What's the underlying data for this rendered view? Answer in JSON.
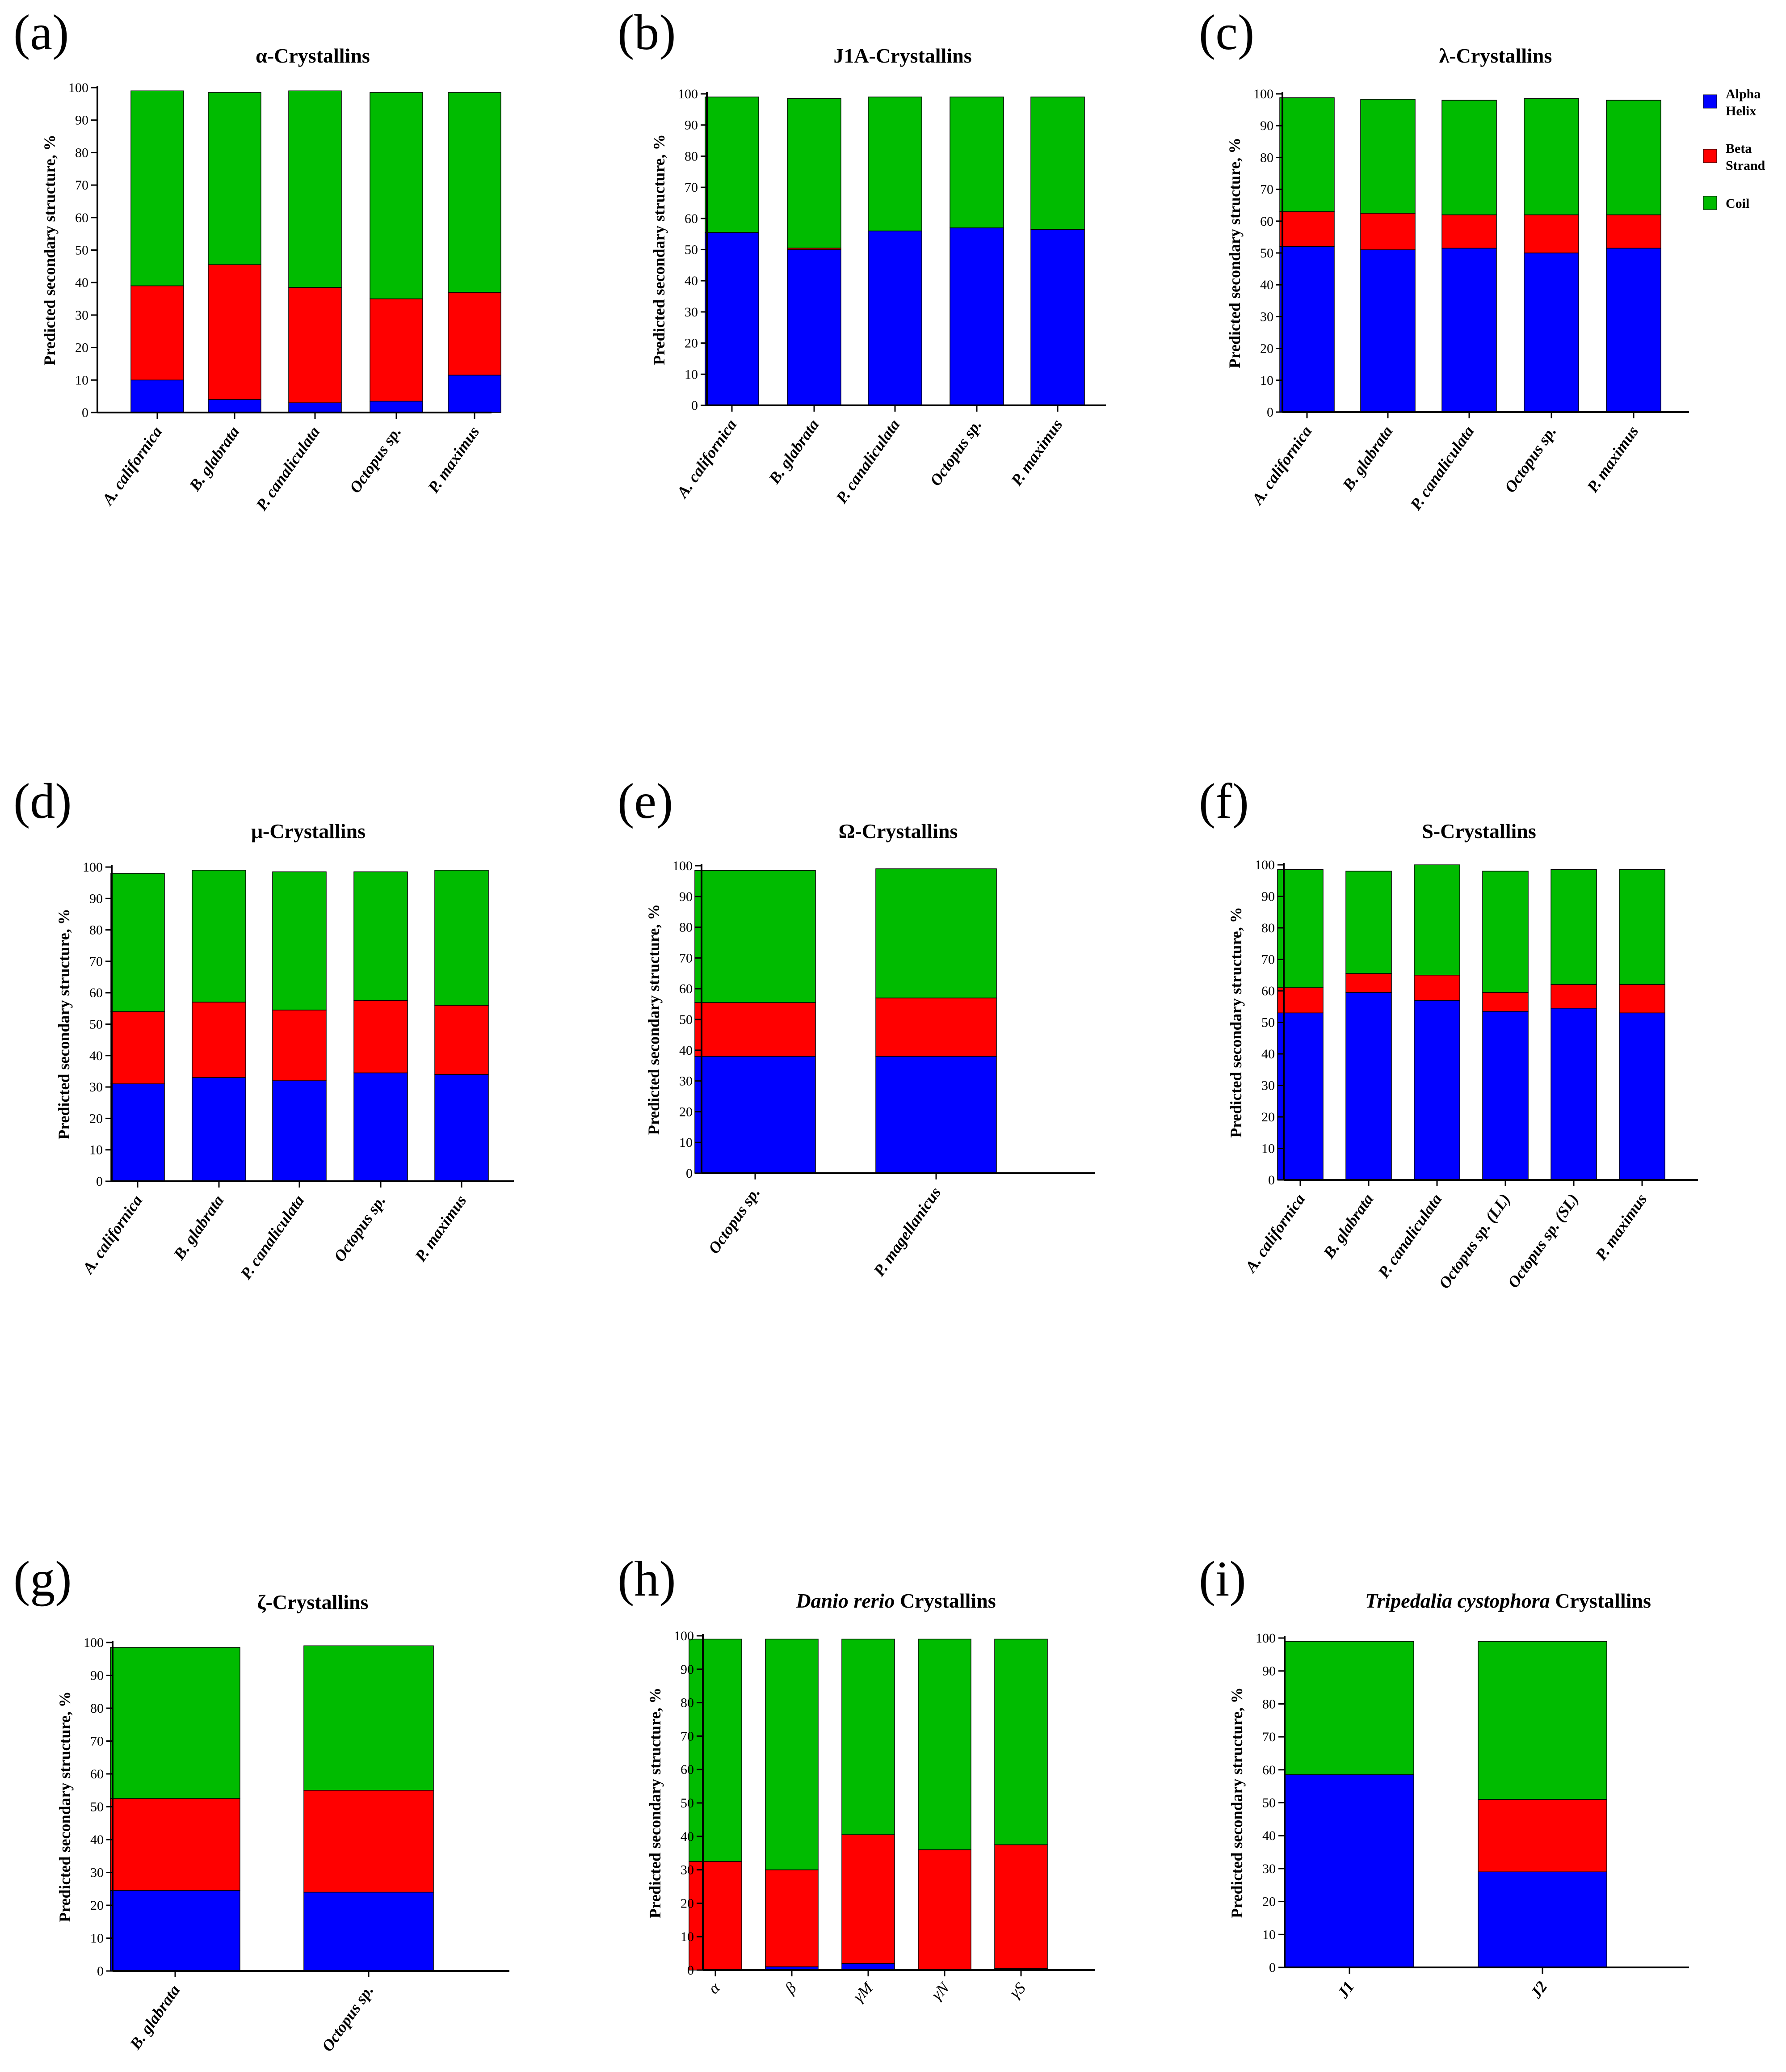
{
  "colors": {
    "alpha_helix": "#0000ff",
    "beta_strand": "#ff0000",
    "coil": "#00bb00"
  },
  "legend": {
    "items": [
      {
        "key": "alpha_helix",
        "lines": [
          "Alpha",
          "Helix"
        ]
      },
      {
        "key": "beta_strand",
        "lines": [
          "Beta",
          "Strand"
        ]
      },
      {
        "key": "coil",
        "lines": [
          "Coil"
        ]
      }
    ]
  },
  "chart_data": [
    {
      "panel": "(a)",
      "type": "bar",
      "stacked": true,
      "title": "α-Crystallins",
      "title_italic_prefix": "",
      "ylabel": "Predicted secondary structure, %",
      "xlabel": "",
      "ylim": [
        0,
        100
      ],
      "yticks": [
        0,
        10,
        20,
        30,
        40,
        50,
        60,
        70,
        80,
        90,
        100
      ],
      "categories": [
        "A. californica",
        "B. glabrata",
        "P. canaliculata",
        "Octopus sp.",
        "P. maximus"
      ],
      "series": [
        {
          "name": "Alpha Helix",
          "values": [
            10,
            4,
            3,
            3.5,
            11.5
          ]
        },
        {
          "name": "Beta Strand",
          "values": [
            29,
            41.5,
            35.5,
            31.5,
            25.5
          ]
        },
        {
          "name": "Coil",
          "values": [
            60,
            53,
            60.5,
            63.5,
            61.5
          ]
        }
      ]
    },
    {
      "panel": "(b)",
      "type": "bar",
      "stacked": true,
      "title": "J1A-Crystallins",
      "title_italic_prefix": "",
      "ylabel": "Predicted secondary structure, %",
      "xlabel": "",
      "ylim": [
        0,
        100
      ],
      "yticks": [
        0,
        10,
        20,
        30,
        40,
        50,
        60,
        70,
        80,
        90,
        100
      ],
      "categories": [
        "A. californica",
        "B. glabrata",
        "P. canaliculata",
        "Octopus sp.",
        "P. maximus"
      ],
      "series": [
        {
          "name": "Alpha Helix",
          "values": [
            55.5,
            50,
            56,
            57,
            56.5
          ]
        },
        {
          "name": "Beta Strand",
          "values": [
            0,
            0.5,
            0,
            0,
            0
          ]
        },
        {
          "name": "Coil",
          "values": [
            43.5,
            48,
            43,
            42,
            42.5
          ]
        }
      ]
    },
    {
      "panel": "(c)",
      "type": "bar",
      "stacked": true,
      "title": "λ-Crystallins",
      "title_italic_prefix": "",
      "ylabel": "Predicted secondary structure, %",
      "xlabel": "",
      "ylim": [
        0,
        100
      ],
      "yticks": [
        0,
        10,
        20,
        30,
        40,
        50,
        60,
        70,
        80,
        90,
        100
      ],
      "categories": [
        "A. californica",
        "B. glabrata",
        "P. canaliculata",
        "Octopus sp.",
        "P. maximus"
      ],
      "series": [
        {
          "name": "Alpha Helix",
          "values": [
            52,
            51,
            51.5,
            50,
            51.5
          ]
        },
        {
          "name": "Beta Strand",
          "values": [
            11,
            11.5,
            10.5,
            12,
            10.5
          ]
        },
        {
          "name": "Coil",
          "values": [
            35.8,
            35.8,
            36,
            36.5,
            36
          ]
        }
      ]
    },
    {
      "panel": "(d)",
      "type": "bar",
      "stacked": true,
      "title": "μ-Crystallins",
      "title_italic_prefix": "",
      "ylabel": "Predicted secondary structure, %",
      "xlabel": "",
      "ylim": [
        0,
        100
      ],
      "yticks": [
        0,
        10,
        20,
        30,
        40,
        50,
        60,
        70,
        80,
        90,
        100
      ],
      "categories": [
        "A. californica",
        "B. glabrata",
        "P. canaliculata",
        "Octopus sp.",
        "P. maximus"
      ],
      "series": [
        {
          "name": "Alpha Helix",
          "values": [
            31,
            33,
            32,
            34.5,
            34
          ]
        },
        {
          "name": "Beta Strand",
          "values": [
            23,
            24,
            22.5,
            23,
            22
          ]
        },
        {
          "name": "Coil",
          "values": [
            44,
            42,
            44,
            41,
            43
          ]
        }
      ]
    },
    {
      "panel": "(e)",
      "type": "bar",
      "stacked": true,
      "title": "Ω-Crystallins",
      "title_italic_prefix": "",
      "ylabel": "Predicted secondary structure, %",
      "xlabel": "",
      "ylim": [
        0,
        100
      ],
      "yticks": [
        0,
        10,
        20,
        30,
        40,
        50,
        60,
        70,
        80,
        90,
        100
      ],
      "categories": [
        "Octopus sp.",
        "P. magellanicus"
      ],
      "series": [
        {
          "name": "Alpha Helix",
          "values": [
            38,
            38
          ]
        },
        {
          "name": "Beta Strand",
          "values": [
            17.5,
            19
          ]
        },
        {
          "name": "Coil",
          "values": [
            43,
            42
          ]
        }
      ]
    },
    {
      "panel": "(f)",
      "type": "bar",
      "stacked": true,
      "title": "S-Crystallins",
      "title_italic_prefix": "",
      "ylabel": "Predicted secondary structure, %",
      "xlabel": "",
      "ylim": [
        0,
        100
      ],
      "yticks": [
        0,
        10,
        20,
        30,
        40,
        50,
        60,
        70,
        80,
        90,
        100
      ],
      "categories": [
        "A. californica",
        "B. glabrata",
        "P. canaliculata",
        "Octopus sp. (LL)",
        "Octopus sp. (SL)",
        "P. maximus"
      ],
      "series": [
        {
          "name": "Alpha Helix",
          "values": [
            53,
            59.5,
            57,
            53.5,
            54.5,
            53
          ]
        },
        {
          "name": "Beta Strand",
          "values": [
            8,
            6,
            8,
            6,
            7.5,
            9
          ]
        },
        {
          "name": "Coil",
          "values": [
            37.5,
            32.5,
            35,
            38.5,
            36.5,
            36.5
          ]
        }
      ]
    },
    {
      "panel": "(g)",
      "type": "bar",
      "stacked": true,
      "title": "ζ-Crystallins",
      "title_italic_prefix": "",
      "ylabel": "Predicted secondary structure, %",
      "xlabel": "",
      "ylim": [
        0,
        100
      ],
      "yticks": [
        0,
        10,
        20,
        30,
        40,
        50,
        60,
        70,
        80,
        90,
        100
      ],
      "categories": [
        "B. glabrata",
        "Octopus sp."
      ],
      "series": [
        {
          "name": "Alpha Helix",
          "values": [
            24.5,
            24
          ]
        },
        {
          "name": "Beta Strand",
          "values": [
            28,
            31
          ]
        },
        {
          "name": "Coil",
          "values": [
            46,
            44
          ]
        }
      ]
    },
    {
      "panel": "(h)",
      "type": "bar",
      "stacked": true,
      "title": " Crystallins",
      "title_italic_prefix": "Danio rerio",
      "ylabel": "Predicted secondary structure, %",
      "xlabel": "",
      "ylim": [
        0,
        100
      ],
      "yticks": [
        0,
        10,
        20,
        30,
        40,
        50,
        60,
        70,
        80,
        90,
        100
      ],
      "categories": [
        "α",
        "β",
        "γM",
        "γN",
        "γS"
      ],
      "series": [
        {
          "name": "Alpha Helix",
          "values": [
            0,
            1,
            2,
            0,
            0.5
          ]
        },
        {
          "name": "Beta Strand",
          "values": [
            32.5,
            29,
            38.5,
            36,
            37
          ]
        },
        {
          "name": "Coil",
          "values": [
            66.5,
            69,
            58.5,
            63,
            61.5
          ]
        }
      ]
    },
    {
      "panel": "(i)",
      "type": "bar",
      "stacked": true,
      "title": " Crystallins",
      "title_italic_prefix": "Tripedalia cystophora",
      "ylabel": "Predicted secondary structure, %",
      "xlabel": "",
      "ylim": [
        0,
        100
      ],
      "yticks": [
        0,
        10,
        20,
        30,
        40,
        50,
        60,
        70,
        80,
        90,
        100
      ],
      "categories": [
        "J1",
        "J2"
      ],
      "series": [
        {
          "name": "Alpha Helix",
          "values": [
            58.5,
            29
          ]
        },
        {
          "name": "Beta Strand",
          "values": [
            0,
            22
          ]
        },
        {
          "name": "Coil",
          "values": [
            40.5,
            48
          ]
        }
      ]
    }
  ]
}
